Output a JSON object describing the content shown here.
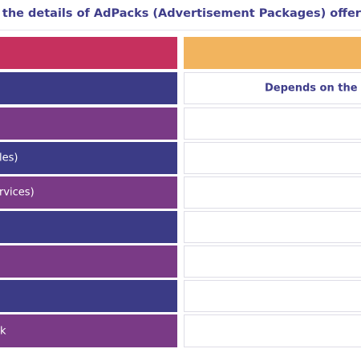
{
  "page": {
    "title": "e the details of AdPacks (Advertisement Packages) offered"
  },
  "colors": {
    "header_left": "#c6305e",
    "header_right": "#f2b45e",
    "navy": "#3b3b86",
    "purple": "#7a3a86",
    "heading_text": "#3f3d8a"
  },
  "table": {
    "rows": [
      {
        "left": "",
        "right": ""
      },
      {
        "left": "",
        "right": "Depends on the n"
      },
      {
        "left": "",
        "right": ""
      },
      {
        "left": "les)",
        "right": ""
      },
      {
        "left": "rvices)",
        "right": ""
      },
      {
        "left": "",
        "right": ""
      },
      {
        "left": "",
        "right": ""
      },
      {
        "left": "",
        "right": ""
      },
      {
        "left": "k",
        "right": ""
      }
    ]
  }
}
